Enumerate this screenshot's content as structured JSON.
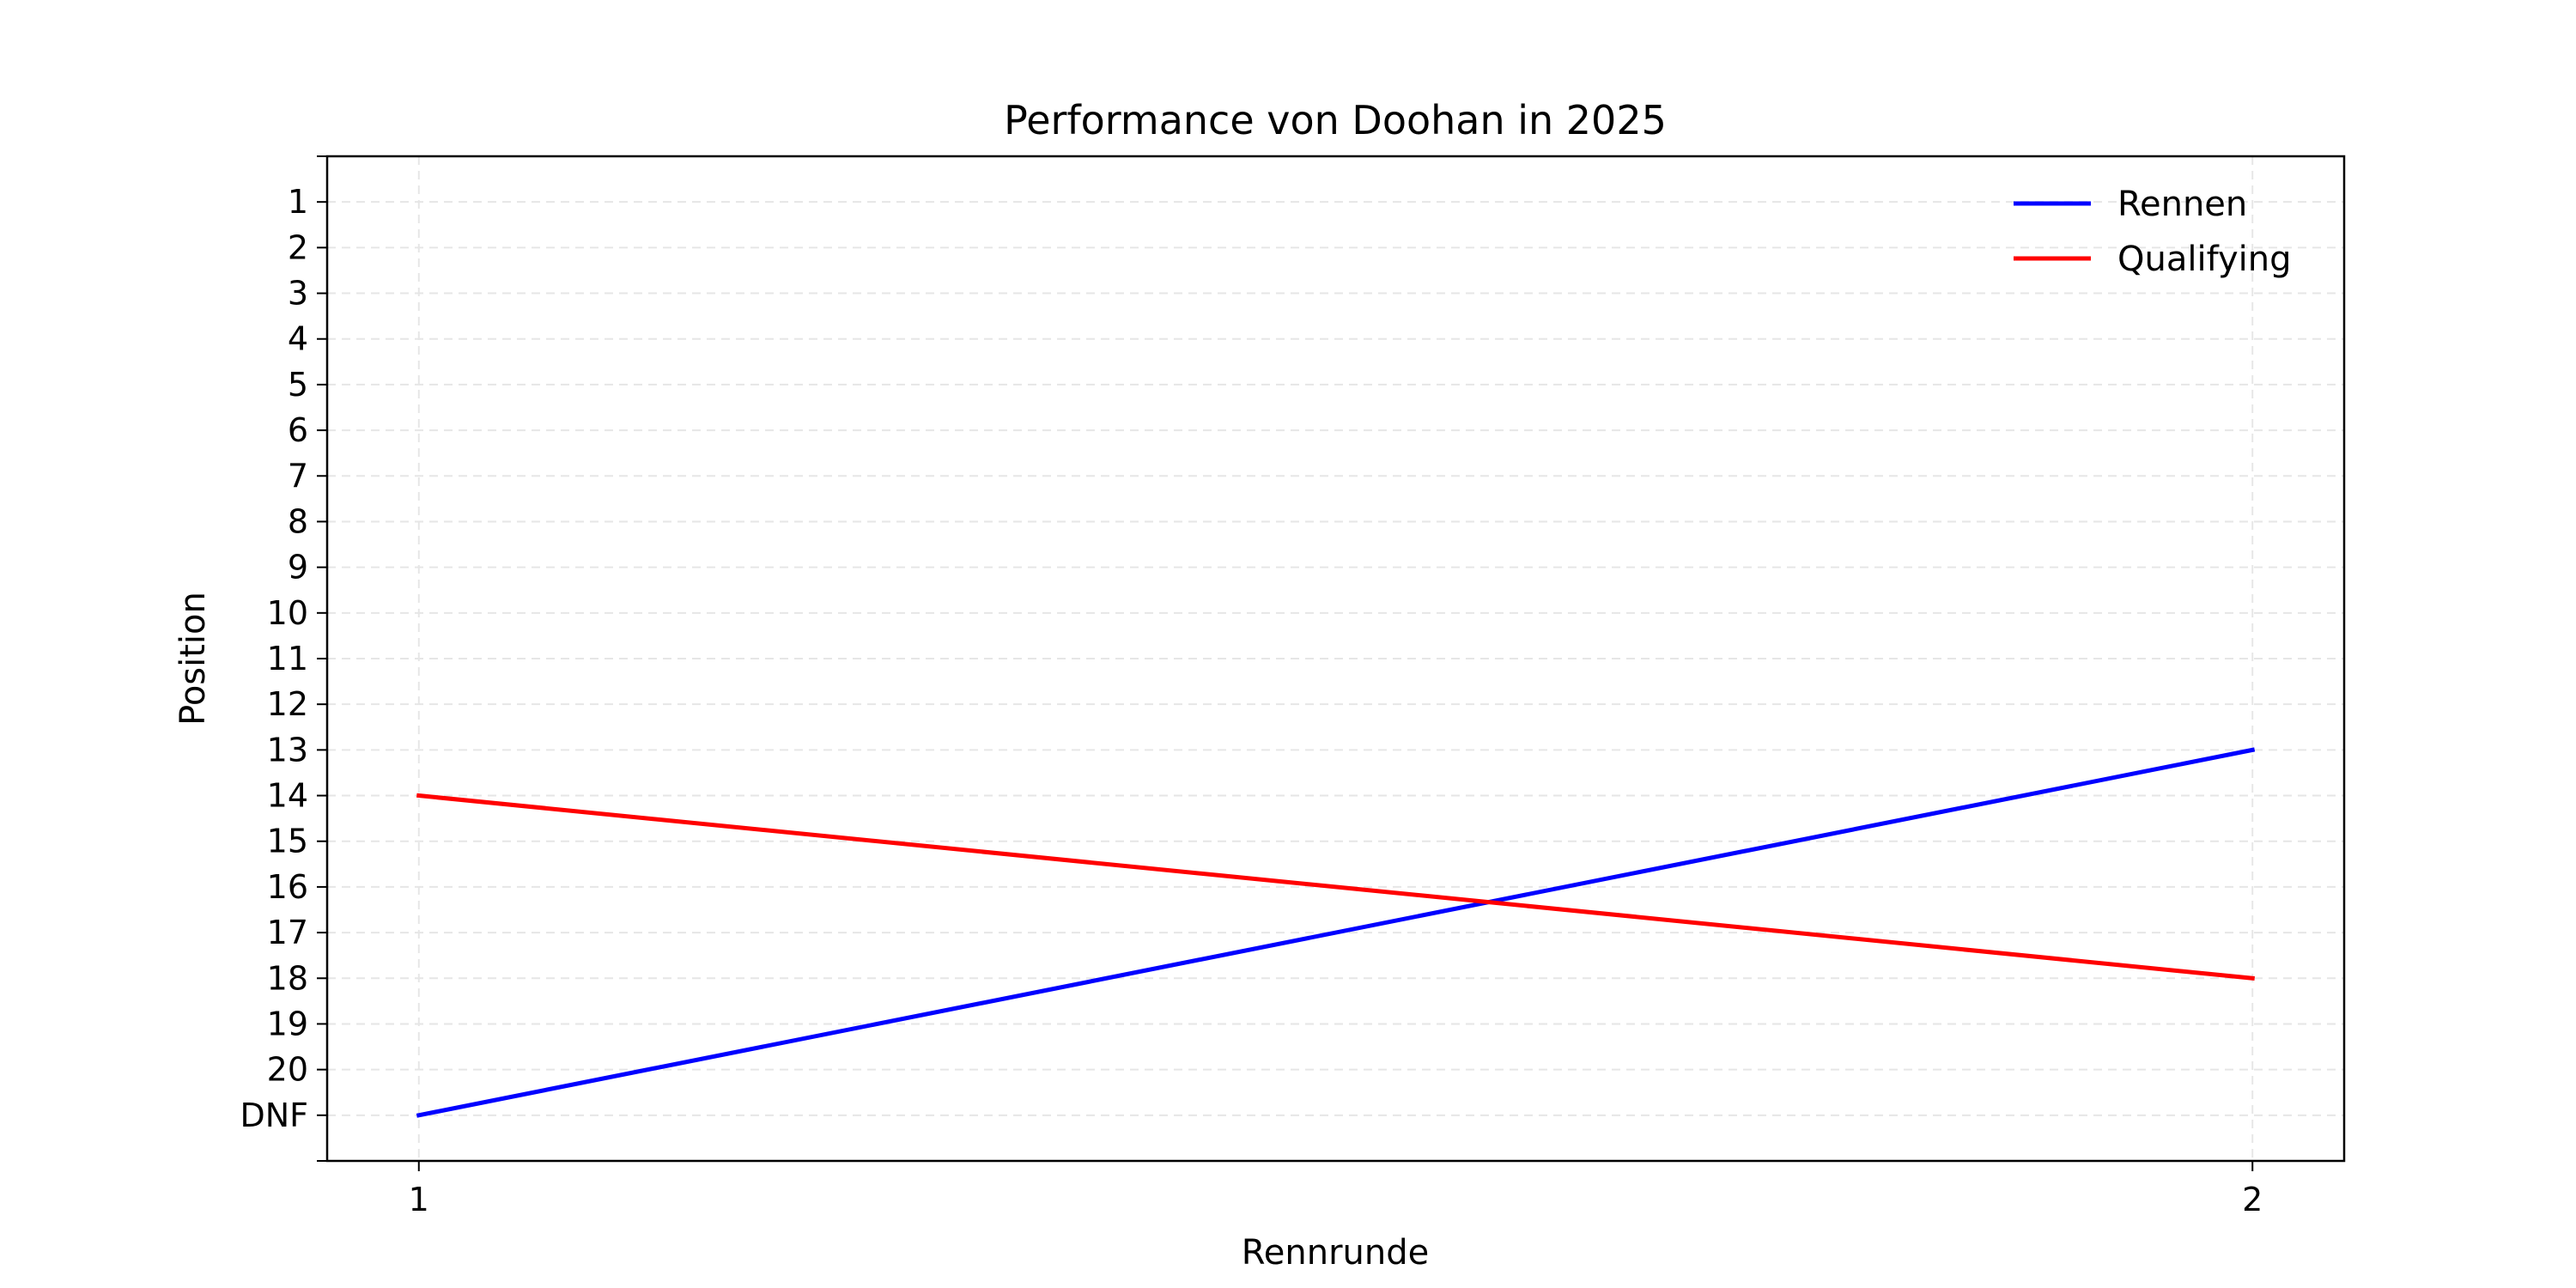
{
  "chart_data": {
    "type": "line",
    "title": "Performance von Doohan in 2025",
    "xlabel": "Rennrunde",
    "ylabel": "Position",
    "x": [
      1,
      2
    ],
    "x_tick_labels": [
      "1",
      "2"
    ],
    "y_tick_labels": [
      "1",
      "2",
      "3",
      "4",
      "5",
      "6",
      "7",
      "8",
      "9",
      "10",
      "11",
      "12",
      "13",
      "14",
      "15",
      "16",
      "17",
      "18",
      "19",
      "20",
      "DNF"
    ],
    "y_tick_values": [
      1,
      2,
      3,
      4,
      5,
      6,
      7,
      8,
      9,
      10,
      11,
      12,
      13,
      14,
      15,
      16,
      17,
      18,
      19,
      20,
      21
    ],
    "ylim": [
      22,
      0
    ],
    "y_inverted": true,
    "grid": true,
    "legend_position": "top-right",
    "series": [
      {
        "name": "Rennen",
        "values": [
          21,
          13
        ],
        "color": "#0000ff"
      },
      {
        "name": "Qualifying",
        "values": [
          14,
          18
        ],
        "color": "#ff0000"
      }
    ]
  }
}
